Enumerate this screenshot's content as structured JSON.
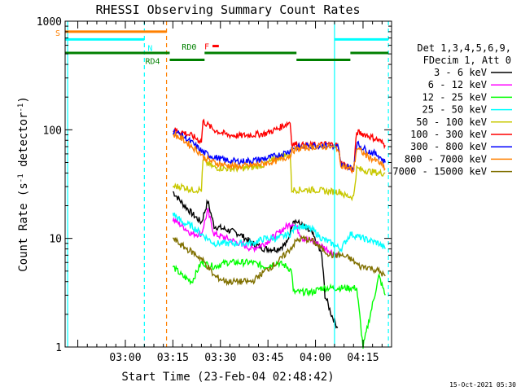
{
  "chart_data": {
    "type": "line",
    "title": "RHESSI Observing Summary Count Rates",
    "xlabel": "Start Time (23-Feb-04 02:48:42)",
    "ylabel_main": "Count Rate (s",
    "ylabel_sup1": "-1",
    "ylabel_mid": " detector",
    "ylabel_sup2": "-1",
    "ylabel_end": ")",
    "yscale": "log",
    "ylim": [
      1,
      1000
    ],
    "xlim_minutes": [
      -7,
      96
    ],
    "yticks": [
      {
        "value": 1,
        "label": "1"
      },
      {
        "value": 10,
        "label": "10"
      },
      {
        "value": 100,
        "label": "100"
      },
      {
        "value": 1000,
        "label": "1000"
      }
    ],
    "xticks": [
      {
        "value": 12,
        "label": "03:00"
      },
      {
        "value": 27,
        "label": "03:15"
      },
      {
        "value": 42,
        "label": "03:30"
      },
      {
        "value": 57,
        "label": "03:45"
      },
      {
        "value": 72,
        "label": "04:00"
      },
      {
        "value": 87,
        "label": "04:15"
      }
    ],
    "legend_header": [
      "Det 1,3,4,5,6,9,",
      "FDecim 1, Att 0"
    ],
    "series": [
      {
        "name": "3 - 6 keV",
        "color": "#000000",
        "points": [
          [
            27,
            27
          ],
          [
            30,
            21
          ],
          [
            33,
            17
          ],
          [
            36,
            14
          ],
          [
            38,
            22
          ],
          [
            40,
            13
          ],
          [
            44,
            12
          ],
          [
            48,
            11
          ],
          [
            52,
            9
          ],
          [
            56,
            8
          ],
          [
            60,
            8
          ],
          [
            63,
            9
          ],
          [
            65,
            15
          ],
          [
            68,
            13
          ],
          [
            71,
            11
          ],
          [
            74,
            7
          ],
          [
            75,
            3
          ],
          [
            77,
            2
          ],
          [
            79,
            1.5
          ]
        ]
      },
      {
        "name": "6 - 12 keV",
        "color": "#ff00ff",
        "points": [
          [
            27,
            15
          ],
          [
            30,
            13
          ],
          [
            33,
            11
          ],
          [
            36,
            11
          ],
          [
            38,
            18
          ],
          [
            40,
            11
          ],
          [
            44,
            10
          ],
          [
            48,
            9
          ],
          [
            52,
            8
          ],
          [
            56,
            9
          ],
          [
            60,
            11
          ],
          [
            63,
            13
          ],
          [
            65,
            14
          ],
          [
            68,
            10
          ],
          [
            71,
            9.5
          ],
          [
            74,
            8.5
          ],
          [
            77,
            7.5
          ],
          [
            79,
            7
          ]
        ]
      },
      {
        "name": "12 - 25 keV",
        "color": "#00ff00",
        "points": [
          [
            27,
            5.5
          ],
          [
            30,
            4.5
          ],
          [
            33,
            4
          ],
          [
            36,
            6
          ],
          [
            40,
            5.5
          ],
          [
            44,
            6
          ],
          [
            48,
            6
          ],
          [
            52,
            6
          ],
          [
            56,
            5.5
          ],
          [
            60,
            6
          ],
          [
            63,
            5.5
          ],
          [
            64.5,
            5
          ],
          [
            65,
            3.2
          ],
          [
            68,
            3.2
          ],
          [
            71,
            3.2
          ],
          [
            74,
            3.5
          ],
          [
            80,
            3.5
          ],
          [
            85,
            3.5
          ],
          [
            87,
            1
          ],
          [
            92,
            4.5
          ],
          [
            94,
            3
          ]
        ]
      },
      {
        "name": "25 - 50 keV",
        "color": "#00ffff",
        "points": [
          [
            27,
            17
          ],
          [
            30,
            14
          ],
          [
            33,
            13
          ],
          [
            36,
            11
          ],
          [
            40,
            9
          ],
          [
            44,
            9
          ],
          [
            48,
            9
          ],
          [
            52,
            9
          ],
          [
            56,
            10
          ],
          [
            60,
            10
          ],
          [
            64,
            11
          ],
          [
            66,
            13
          ],
          [
            68,
            13
          ],
          [
            71,
            12
          ],
          [
            74,
            10
          ],
          [
            77,
            9
          ],
          [
            80,
            8
          ],
          [
            83,
            11
          ],
          [
            87,
            10
          ],
          [
            92,
            9
          ],
          [
            94,
            8
          ]
        ]
      },
      {
        "name": "50 - 100 keV",
        "color": "#c8c800",
        "points": [
          [
            27,
            30
          ],
          [
            30,
            30
          ],
          [
            33,
            28
          ],
          [
            36,
            28
          ],
          [
            36.5,
            52
          ],
          [
            40,
            45
          ],
          [
            44,
            44
          ],
          [
            48,
            44
          ],
          [
            52,
            45
          ],
          [
            56,
            48
          ],
          [
            60,
            55
          ],
          [
            64,
            60
          ],
          [
            64.5,
            28
          ],
          [
            68,
            28
          ],
          [
            72,
            28
          ],
          [
            76,
            27
          ],
          [
            80,
            27
          ],
          [
            81,
            25
          ],
          [
            84,
            24
          ],
          [
            85,
            44
          ],
          [
            88,
            42
          ],
          [
            92,
            40
          ],
          [
            94,
            40
          ]
        ]
      },
      {
        "name": "100 - 300 keV",
        "color": "#ff0000",
        "points": [
          [
            27,
            100
          ],
          [
            30,
            95
          ],
          [
            33,
            88
          ],
          [
            36,
            78
          ],
          [
            36.5,
            120
          ],
          [
            40,
            100
          ],
          [
            44,
            90
          ],
          [
            48,
            88
          ],
          [
            52,
            90
          ],
          [
            56,
            92
          ],
          [
            60,
            102
          ],
          [
            64,
            118
          ],
          [
            64.5,
            75
          ],
          [
            68,
            72
          ],
          [
            72,
            72
          ],
          [
            76,
            74
          ],
          [
            79,
            72
          ],
          [
            80,
            50
          ],
          [
            84,
            42
          ],
          [
            85,
            95
          ],
          [
            88,
            90
          ],
          [
            92,
            80
          ],
          [
            94,
            72
          ]
        ]
      },
      {
        "name": "300 - 800 keV",
        "color": "#0000ff",
        "points": [
          [
            27,
            98
          ],
          [
            30,
            88
          ],
          [
            33,
            76
          ],
          [
            36,
            64
          ],
          [
            36.5,
            62
          ],
          [
            40,
            56
          ],
          [
            44,
            52
          ],
          [
            48,
            51
          ],
          [
            52,
            52
          ],
          [
            56,
            54
          ],
          [
            60,
            58
          ],
          [
            64,
            64
          ],
          [
            64.5,
            68
          ],
          [
            68,
            70
          ],
          [
            72,
            72
          ],
          [
            76,
            72
          ],
          [
            79,
            70
          ],
          [
            80,
            48
          ],
          [
            84,
            44
          ],
          [
            85,
            75
          ],
          [
            88,
            65
          ],
          [
            92,
            58
          ],
          [
            94,
            50
          ]
        ]
      },
      {
        "name": "800 - 7000 keV",
        "color": "#ff8000",
        "points": [
          [
            27,
            92
          ],
          [
            30,
            82
          ],
          [
            33,
            70
          ],
          [
            36,
            60
          ],
          [
            36.5,
            56
          ],
          [
            40,
            50
          ],
          [
            44,
            47
          ],
          [
            48,
            46
          ],
          [
            52,
            47
          ],
          [
            56,
            49
          ],
          [
            60,
            52
          ],
          [
            64,
            58
          ],
          [
            64.5,
            64
          ],
          [
            68,
            68
          ],
          [
            72,
            70
          ],
          [
            76,
            70
          ],
          [
            79,
            68
          ],
          [
            80,
            48
          ],
          [
            84,
            42
          ],
          [
            85,
            68
          ],
          [
            88,
            58
          ],
          [
            92,
            50
          ],
          [
            94,
            44
          ]
        ]
      },
      {
        "name": "7000 - 15000 keV",
        "color": "#807000",
        "points": [
          [
            27,
            10
          ],
          [
            30,
            8.5
          ],
          [
            33,
            7.5
          ],
          [
            36,
            6.5
          ],
          [
            38,
            5.5
          ],
          [
            40,
            4.5
          ],
          [
            44,
            4
          ],
          [
            48,
            4
          ],
          [
            52,
            4
          ],
          [
            56,
            5
          ],
          [
            60,
            6
          ],
          [
            64,
            8
          ],
          [
            66,
            9.5
          ],
          [
            68,
            10
          ],
          [
            71,
            9.5
          ],
          [
            74,
            8
          ],
          [
            77,
            7
          ],
          [
            80,
            7
          ],
          [
            83,
            6.5
          ],
          [
            86,
            5.5
          ],
          [
            88,
            5.5
          ],
          [
            92,
            5
          ],
          [
            94,
            4.5
          ]
        ]
      }
    ],
    "flag_bars": [
      {
        "label": "S",
        "color": "#ff8000",
        "y": 800,
        "segments": [
          [
            -7,
            25
          ]
        ]
      },
      {
        "label": "N",
        "color": "#00ffff",
        "y": 680,
        "segments": [
          [
            -7,
            18
          ],
          [
            78,
            95
          ]
        ]
      },
      {
        "label": "RD4",
        "color": "#008000",
        "y": 440,
        "segments": [
          [
            26,
            37
          ],
          [
            66,
            83
          ]
        ]
      },
      {
        "label": "RD0",
        "color": "#008000",
        "y": 510,
        "segments": [
          [
            -7,
            26
          ],
          [
            37,
            66
          ],
          [
            83,
            95
          ]
        ]
      },
      {
        "label": "F",
        "color": "#ff0000",
        "y": 590,
        "segments": [
          [
            39.5,
            41.5
          ]
        ]
      }
    ],
    "vlines": [
      {
        "x": -6.2,
        "color": "#00ffff",
        "style": "solid"
      },
      {
        "x": 18,
        "color": "#00ffff",
        "style": "dashed"
      },
      {
        "x": 25,
        "color": "#ff8000",
        "style": "dashed"
      },
      {
        "x": 78,
        "color": "#00ffff",
        "style": "solid"
      },
      {
        "x": 95,
        "color": "#00ffff",
        "style": "dashed"
      }
    ],
    "footer": "15-Oct-2021 05:30",
    "legend_placement": "right",
    "grid": false
  }
}
